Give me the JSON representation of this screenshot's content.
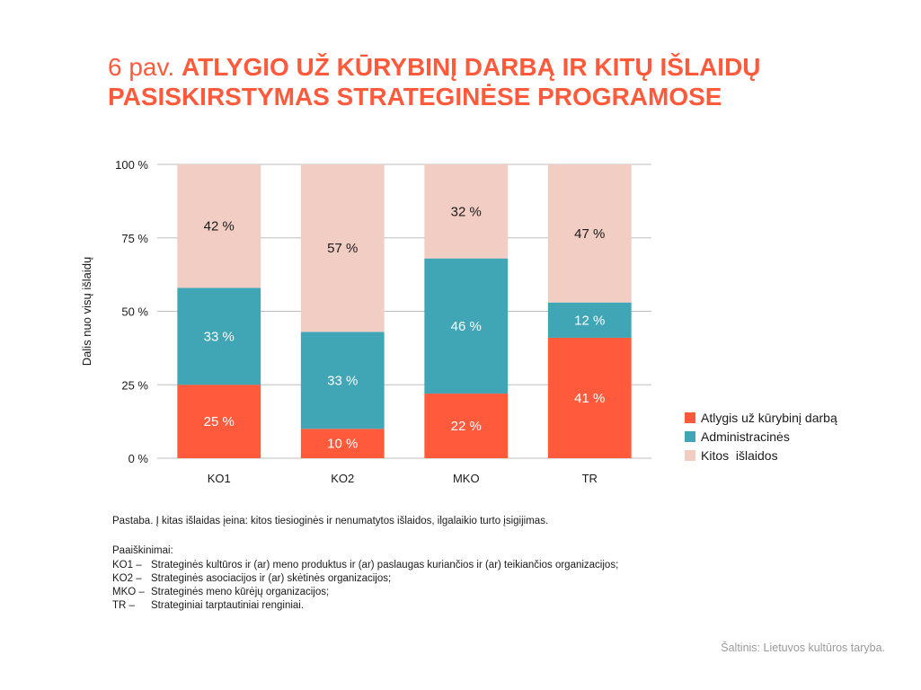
{
  "title": {
    "prefix": "6 pav.",
    "line1": "ATLYGIO UŽ KŪRYBINĮ DARBĄ IR KITŲ IŠLAIDŲ",
    "line2": "PASISKIRSTYMAS STRATEGINĖSE PROGRAMOSE"
  },
  "colors": {
    "atlygis": "#ff5a3c",
    "administracines": "#40a6b5",
    "kitos": "#f2cdc4",
    "grid": "#bdbdbd"
  },
  "chart_data": {
    "type": "bar",
    "stacked": true,
    "ylabel": "Dalis nuo visų išlaidų",
    "ylim": [
      0,
      100
    ],
    "yticks": [
      0,
      25,
      50,
      75,
      100
    ],
    "ytick_labels": [
      "0 %",
      "25 %",
      "50 %",
      "75 %",
      "100 %"
    ],
    "categories": [
      "KO1",
      "KO2",
      "MKO",
      "TR"
    ],
    "series": [
      {
        "name": "Atlygis už kūrybinį darbą",
        "color": "#ff5a3c",
        "values": [
          25,
          10,
          22,
          41
        ],
        "labels": [
          "25 %",
          "10 %",
          "22 %",
          "41 %"
        ],
        "label_color": "#ffffff"
      },
      {
        "name": "Administracinės",
        "color": "#40a6b5",
        "values": [
          33,
          33,
          46,
          12
        ],
        "labels": [
          "33 %",
          "33 %",
          "46 %",
          "12 %"
        ],
        "label_color": "#ffffff"
      },
      {
        "name": "Kitos  išlaidos",
        "color": "#f2cdc4",
        "values": [
          42,
          57,
          32,
          47
        ],
        "labels": [
          "42 %",
          "57 %",
          "32 %",
          "47 %"
        ],
        "label_color": "#1a1a1a"
      }
    ],
    "grid": true,
    "legend": "right"
  },
  "note": "Pastaba. Į kitas išlaidas įeina: kitos tiesioginės ir nenumatytos išlaidos, ilgalaikio turto įsigijimas.",
  "explanations": {
    "heading": "Paaiškinimai:",
    "items": [
      {
        "code": "KO1 –",
        "text": "Strateginės kultūros ir (ar) meno produktus ir (ar) paslaugas kuriančios ir (ar) teikiančios organizacijos;"
      },
      {
        "code": "KO2 –",
        "text": "Strateginės asociacijos ir (ar) skėtinės organizacijos;"
      },
      {
        "code": "MKO –",
        "text": "Strateginės meno kūrėjų organizacijos;"
      },
      {
        "code": "TR –",
        "text": "Strateginiai tarptautiniai renginiai."
      }
    ]
  },
  "source": "Šaltinis: Lietuvos kultūros taryba."
}
